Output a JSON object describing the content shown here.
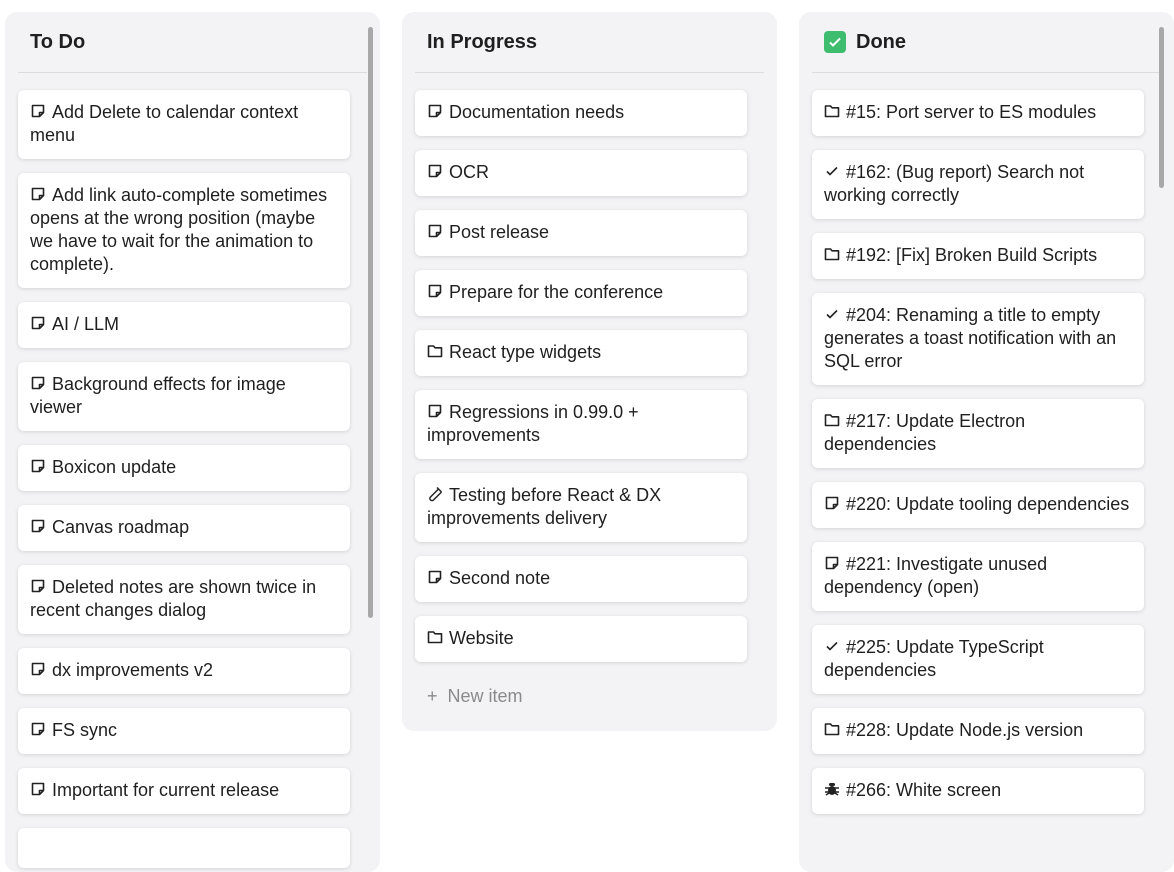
{
  "colors": {
    "accent_done": "#3ebd6e",
    "column_bg": "#f3f3f5",
    "card_bg": "#ffffff"
  },
  "columns": [
    {
      "title": "To Do",
      "items": [
        {
          "icon": "note-icon",
          "label": "Add Delete to calendar context menu"
        },
        {
          "icon": "note-icon",
          "label": "Add link auto-complete sometimes opens at the wrong position (maybe we have to wait for the animation to complete)."
        },
        {
          "icon": "note-icon",
          "label": "AI / LLM"
        },
        {
          "icon": "note-icon",
          "label": "Background effects for image viewer"
        },
        {
          "icon": "note-icon",
          "label": "Boxicon update"
        },
        {
          "icon": "note-icon",
          "label": "Canvas roadmap"
        },
        {
          "icon": "note-icon",
          "label": "Deleted notes are shown twice in recent changes dialog"
        },
        {
          "icon": "note-icon",
          "label": "dx improvements v2"
        },
        {
          "icon": "note-icon",
          "label": "FS sync"
        },
        {
          "icon": "note-icon",
          "label": "Important for current release"
        },
        {
          "icon": "note-icon",
          "label": ""
        }
      ]
    },
    {
      "title": "In Progress",
      "items": [
        {
          "icon": "note-icon",
          "label": "Documentation needs"
        },
        {
          "icon": "note-icon",
          "label": "OCR"
        },
        {
          "icon": "note-icon",
          "label": "Post release"
        },
        {
          "icon": "note-icon",
          "label": "Prepare for the conference"
        },
        {
          "icon": "folder-icon",
          "label": "React type widgets"
        },
        {
          "icon": "note-icon",
          "label": "Regressions in 0.99.0 + improvements"
        },
        {
          "icon": "test-tube-icon",
          "label": "Testing before React & DX improvements delivery"
        },
        {
          "icon": "note-icon",
          "label": "Second note"
        },
        {
          "icon": "folder-icon",
          "label": "Website"
        }
      ],
      "new_item": {
        "icon": "plus-icon",
        "label": "New item"
      }
    },
    {
      "title": "Done",
      "title_icon": "check-box-icon",
      "items": [
        {
          "icon": "folder-icon",
          "label": "#15: Port server to ES modules"
        },
        {
          "icon": "check-icon",
          "label": "#162: (Bug report) Search not working correctly"
        },
        {
          "icon": "folder-icon",
          "label": "#192: [Fix] Broken Build Scripts"
        },
        {
          "icon": "check-icon",
          "label": "#204: Renaming a title to empty generates a toast notification with an SQL error"
        },
        {
          "icon": "folder-icon",
          "label": "#217: Update Electron dependencies"
        },
        {
          "icon": "note-icon",
          "label": "#220: Update tooling dependencies"
        },
        {
          "icon": "note-icon",
          "label": "#221: Investigate unused dependency (open)"
        },
        {
          "icon": "check-icon",
          "label": "#225: Update TypeScript dependencies"
        },
        {
          "icon": "folder-icon",
          "label": "#228: Update Node.js version"
        },
        {
          "icon": "bug-icon",
          "label": "#266: White screen"
        }
      ]
    }
  ]
}
